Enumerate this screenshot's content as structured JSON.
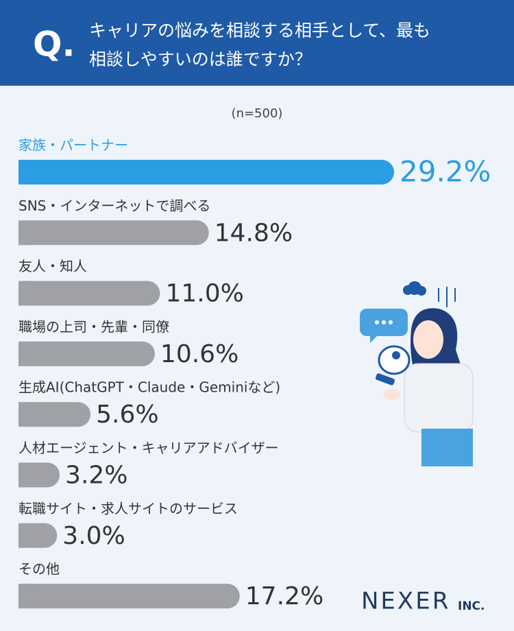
{
  "header": {
    "q_mark": "Q.",
    "question": [
      "キャリアの悩みを相談する相手として、最も",
      "相談しやすいのは誰ですか？"
    ]
  },
  "chart_data": {
    "type": "bar",
    "orientation": "horizontal",
    "subtitle": "(n=500)",
    "categories": [
      "家族・パートナー",
      "SNS・インターネットで調べる",
      "友人・知人",
      "職場の上司・先輩・同僚",
      "生成AI(ChatGPT・Claude・Geminiなど)",
      "人材エージェント・キャリアアドバイザー",
      "転職サイト・求人サイトのサービス",
      "その他"
    ],
    "values": [
      29.2,
      14.8,
      11.0,
      10.6,
      5.6,
      3.2,
      3.0,
      17.2
    ],
    "value_labels": [
      "29.2%",
      "14.8%",
      "11.0%",
      "10.6%",
      "5.6%",
      "3.2%",
      "3.0%",
      "17.2%"
    ],
    "colors": [
      "#2b9de2",
      "#a0a1a6",
      "#a0a1a6",
      "#a0a1a6",
      "#a0a1a6",
      "#a0a1a6",
      "#a0a1a6",
      "#a0a1a6"
    ],
    "label_colors": [
      "#2b9de2",
      "#333333",
      "#333333",
      "#333333",
      "#333333",
      "#333333",
      "#333333",
      "#333333"
    ]
  },
  "logo": {
    "name": "NEXER",
    "suffix": "INC."
  }
}
